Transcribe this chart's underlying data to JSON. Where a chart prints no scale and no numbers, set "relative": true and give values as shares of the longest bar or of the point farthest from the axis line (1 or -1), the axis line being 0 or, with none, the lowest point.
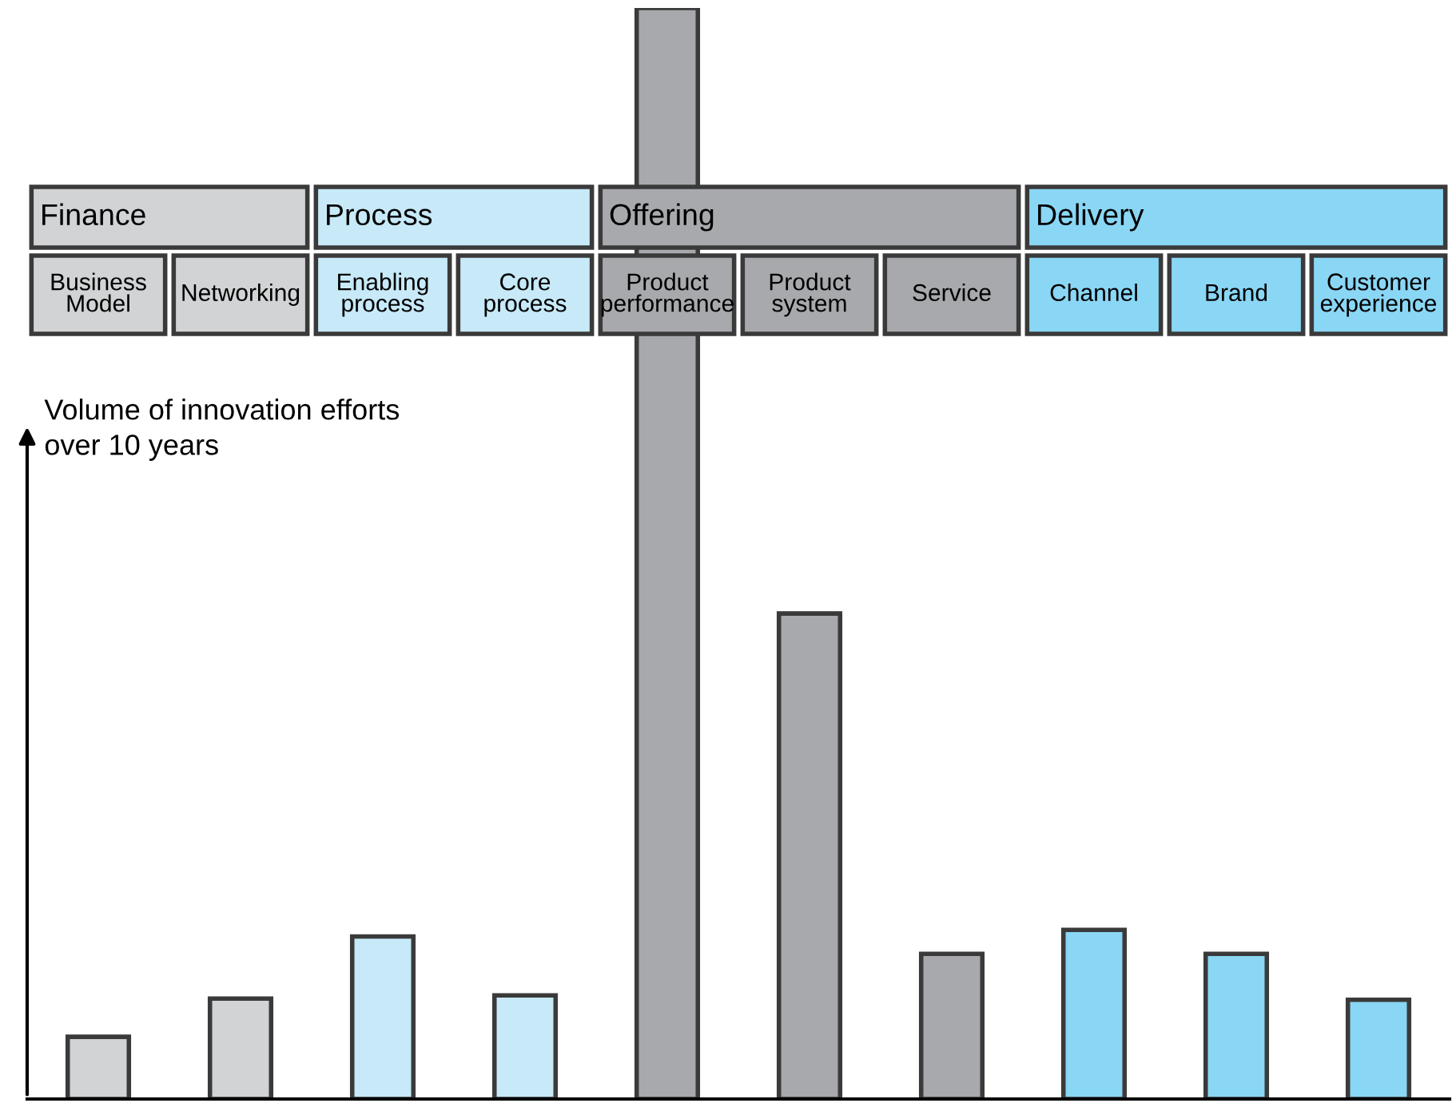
{
  "chart_data": {
    "type": "bar",
    "relative": true,
    "ylabel": "Volume of innovation efforts\nover 10 years",
    "legend": "top",
    "categories": [
      "Business\nModel",
      "Networking",
      "Enabling\nprocess",
      "Core\nprocess",
      "Product\nperformance",
      "Product\nsystem",
      "Service",
      "Channel",
      "Brand",
      "Customer\nexperience"
    ],
    "series": [
      {
        "name": "Finance",
        "color": "#d1d3d4",
        "values": [
          0.057,
          0.092,
          null,
          null,
          null,
          null,
          null,
          null,
          null,
          null
        ]
      },
      {
        "name": "Process",
        "color": "#c7e9f8",
        "values": [
          null,
          null,
          0.149,
          0.095,
          null,
          null,
          null,
          null,
          null,
          null
        ]
      },
      {
        "name": "Offering",
        "color": "#a7a9ac",
        "values": [
          null,
          null,
          null,
          null,
          1,
          0.445,
          0.133,
          null,
          null,
          null
        ]
      },
      {
        "name": "Delivery",
        "color": "#8ad6f5",
        "values": [
          null,
          null,
          null,
          null,
          null,
          null,
          null,
          0.155,
          0.133,
          0.091
        ]
      }
    ]
  }
}
